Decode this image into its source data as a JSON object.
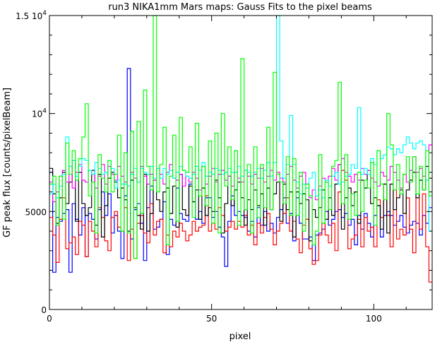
{
  "chart_data": {
    "type": "line",
    "title": "run3 NIKA1mm Mars maps: Gauss Fits to the pixel beams",
    "xlabel": "pixel",
    "ylabel": "GF peak flux [counts/pixelBeam]",
    "xlim": [
      0,
      118
    ],
    "ylim": [
      0,
      15000
    ],
    "xticks": [
      {
        "value": 0,
        "label": "0"
      },
      {
        "value": 50,
        "label": "50"
      },
      {
        "value": 100,
        "label": "100"
      }
    ],
    "yticks": [
      {
        "value": 0,
        "label": "0",
        "exp": ""
      },
      {
        "value": 5000,
        "label": "5000",
        "exp": ""
      },
      {
        "value": 10000,
        "label": "10",
        "exp": "4"
      },
      {
        "value": 15000,
        "label": "1.5 10",
        "exp": "4"
      }
    ],
    "grid": false,
    "step": true,
    "series": [
      {
        "color": "#0000ff",
        "values": [
          7000,
          1900,
          4700,
          4500,
          4900,
          5100,
          1900,
          5400,
          4600,
          3800,
          5200,
          2700,
          4900,
          4600,
          3600,
          5100,
          6000,
          4800,
          5900,
          3900,
          4800,
          4000,
          2600,
          5800,
          12300,
          3600,
          5100,
          5400,
          4400,
          2500,
          5200,
          6300,
          4100,
          4200,
          4600,
          5500,
          2800,
          4600,
          4300,
          6200,
          4900,
          4600,
          4500,
          6400,
          5500,
          4600,
          5000,
          4400,
          5700,
          5700,
          4700,
          5000,
          4200,
          3700,
          2200,
          4500,
          5800,
          4800,
          5000,
          4800,
          4700,
          4000,
          4500,
          3700,
          5200,
          4300,
          5000,
          4000,
          4400,
          3900,
          4700,
          5100,
          5700,
          4400,
          4900,
          3500,
          5700,
          4400,
          3600,
          3600,
          3700,
          2500,
          3800,
          3900,
          4100,
          5000,
          4300,
          4600,
          5000,
          5100,
          4700,
          4900,
          4300,
          4600,
          3300,
          4800,
          4100,
          4900,
          4400,
          3700,
          4800,
          5300,
          3700,
          4800,
          5000,
          4800,
          4300,
          4500,
          4800,
          4200,
          3900,
          4300,
          4500,
          4400,
          3800,
          4800,
          4400,
          5200
        ]
      },
      {
        "color": "#ff0000",
        "values": [
          4700,
          3800,
          2400,
          4600,
          5700,
          3100,
          3400,
          3700,
          2800,
          4500,
          4300,
          2700,
          4500,
          4000,
          3200,
          5200,
          4700,
          3500,
          3000,
          4700,
          5000,
          4200,
          4000,
          5200,
          2500,
          4100,
          2600,
          4400,
          4800,
          3900,
          3400,
          5400,
          3800,
          4500,
          4600,
          2900,
          3800,
          3200,
          4000,
          3700,
          4400,
          4000,
          3500,
          3800,
          4500,
          4000,
          4200,
          4300,
          5800,
          4000,
          4400,
          4100,
          5200,
          4800,
          4000,
          4200,
          4500,
          4100,
          4500,
          4200,
          4800,
          3800,
          4300,
          3300,
          4400,
          3900,
          4700,
          4900,
          4100,
          3300,
          4000,
          4400,
          4900,
          5700,
          4000,
          4500,
          3600,
          2900,
          4300,
          4600,
          3100,
          2300,
          2500,
          3800,
          4400,
          3800,
          3400,
          4400,
          3000,
          6000,
          7100,
          6600,
          3100,
          3600,
          3800,
          4600,
          3200,
          4700,
          4000,
          4200,
          3200,
          5600,
          4700,
          6400,
          4800,
          3200,
          6100,
          3600,
          4100,
          3800,
          5700,
          4100,
          2900,
          5700,
          4100,
          5900,
          3200,
          1400
        ]
      },
      {
        "color": "#000000",
        "values": [
          7200,
          5900,
          4400,
          5700,
          7000,
          5400,
          6500,
          7600,
          4500,
          7000,
          5400,
          4800,
          5200,
          7100,
          4300,
          6900,
          3700,
          5300,
          6700,
          7000,
          6500,
          5700,
          6200,
          5600,
          4000,
          6600,
          5200,
          4800,
          4100,
          6900,
          4000,
          4900,
          6600,
          5600,
          5000,
          6000,
          6200,
          4900,
          6300,
          4200,
          6900,
          5100,
          4800,
          6300,
          5500,
          6100,
          4600,
          6200,
          4800,
          5200,
          5000,
          6600,
          5700,
          3900,
          5400,
          6800,
          5300,
          6100,
          6500,
          5700,
          4300,
          5600,
          5100,
          6100,
          5300,
          5900,
          4300,
          6200,
          5100,
          5900,
          6500,
          4500,
          6400,
          5100,
          6000,
          3700,
          6000,
          5400,
          5900,
          5600,
          3500,
          5100,
          4700,
          5200,
          6100,
          4600,
          5700,
          4800,
          6400,
          7400,
          4100,
          5700,
          6200,
          5300,
          6000,
          4400,
          6600,
          6200,
          7100,
          5400,
          5700,
          5300,
          4100,
          6400,
          3900,
          6400,
          5100,
          5700,
          6100,
          4900,
          6100,
          6600,
          7000,
          5700,
          6600,
          6100,
          7300,
          6700
        ]
      },
      {
        "color": "#ff00ff",
        "values": [
          6500,
          5500,
          6000,
          6800,
          7100,
          6500,
          7300,
          6200,
          7000,
          7400,
          6600,
          6500,
          7100,
          6900,
          6200,
          6800,
          7400,
          6400,
          7300,
          6900,
          6600,
          7300,
          6800,
          6500,
          6300,
          7000,
          6700,
          6500,
          7300,
          6800,
          6400,
          6900,
          6600,
          7200,
          6900,
          6400,
          7000,
          7400,
          6700,
          6600,
          6900,
          6300,
          6800,
          6500,
          7000,
          6700,
          6100,
          7300,
          6400,
          6800,
          7200,
          6500,
          6900,
          7100,
          6600,
          6800,
          6300,
          7000,
          6700,
          6500,
          7100,
          6800,
          6400,
          6900,
          6700,
          7200,
          6500,
          6800,
          7100,
          6600,
          7000,
          6700,
          6500,
          6900,
          7300,
          6600,
          6200,
          6800,
          7000,
          6400,
          5700,
          6100,
          5600,
          6300,
          6700,
          6500,
          6800,
          7200,
          6600,
          7400,
          7700,
          7000,
          6800,
          6500,
          6900,
          6600,
          7200,
          6900,
          7100,
          6700,
          6500,
          6300,
          7000,
          6800,
          6600,
          7300,
          7000,
          6600,
          6200,
          6900,
          6500,
          7100,
          7800,
          7000,
          7200,
          6800,
          6600,
          8400
        ]
      },
      {
        "color": "#00ffff",
        "values": [
          5900,
          6400,
          5700,
          6300,
          6900,
          8800,
          7300,
          7600,
          6800,
          7300,
          7700,
          7600,
          7100,
          6900,
          7500,
          7200,
          6900,
          7000,
          7600,
          7200,
          6200,
          6600,
          6400,
          6400,
          6300,
          6900,
          7200,
          6500,
          7200,
          7000,
          6900,
          7300,
          6700,
          7200,
          6700,
          7200,
          6900,
          7100,
          6700,
          7000,
          7300,
          7100,
          6800,
          6700,
          6900,
          7300,
          7100,
          7500,
          6800,
          7000,
          6900,
          7200,
          7100,
          6900,
          7000,
          7200,
          7000,
          7000,
          7300,
          6800,
          7100,
          7000,
          6800,
          7000,
          7200,
          6700,
          7100,
          7500,
          6800,
          7500,
          15000,
          8600,
          6700,
          7400,
          9900,
          7400,
          6500,
          5900,
          6400,
          6200,
          6700,
          7000,
          5800,
          6100,
          5700,
          6600,
          6300,
          6800,
          7000,
          6400,
          6500,
          6800,
          6900,
          7400,
          7200,
          10300,
          6900,
          7200,
          6900,
          7700,
          7400,
          8100,
          7700,
          7900,
          8300,
          8200,
          7900,
          8200,
          8000,
          8400,
          8800,
          8500,
          8200,
          8500,
          8600,
          8400,
          6600,
          4000
        ]
      },
      {
        "color": "#00ff00",
        "values": [
          6400,
          6800,
          4300,
          6800,
          4600,
          8500,
          6900,
          8100,
          6600,
          7700,
          8800,
          10500,
          5800,
          6500,
          3900,
          7900,
          6700,
          6000,
          7600,
          6000,
          6900,
          8900,
          4000,
          8000,
          3900,
          9100,
          2600,
          9600,
          4900,
          11200,
          7300,
          6100,
          15000,
          6000,
          7400,
          9300,
          3300,
          6800,
          8900,
          4500,
          9800,
          7100,
          7000,
          8300,
          4700,
          9500,
          5800,
          7300,
          5300,
          8600,
          4400,
          9000,
          3900,
          10000,
          6300,
          8300,
          5600,
          8100,
          4300,
          12800,
          5100,
          7400,
          3900,
          8300,
          4700,
          7400,
          5200,
          9300,
          5100,
          12100,
          6900,
          6500,
          5400,
          7800,
          4800,
          7700,
          4800,
          7000,
          4000,
          6400,
          5800,
          3300,
          4000,
          7900,
          4400,
          6500,
          5100,
          7300,
          7600,
          11600,
          5400,
          7900,
          4600,
          5900,
          4800,
          7000,
          5000,
          6600,
          6200,
          7500,
          4300,
          8100,
          6400,
          5600,
          10000,
          8400,
          6100,
          7400,
          5900,
          6900,
          7800,
          6500,
          7800,
          5900,
          7300,
          6100,
          8100,
          5800
        ]
      }
    ]
  }
}
